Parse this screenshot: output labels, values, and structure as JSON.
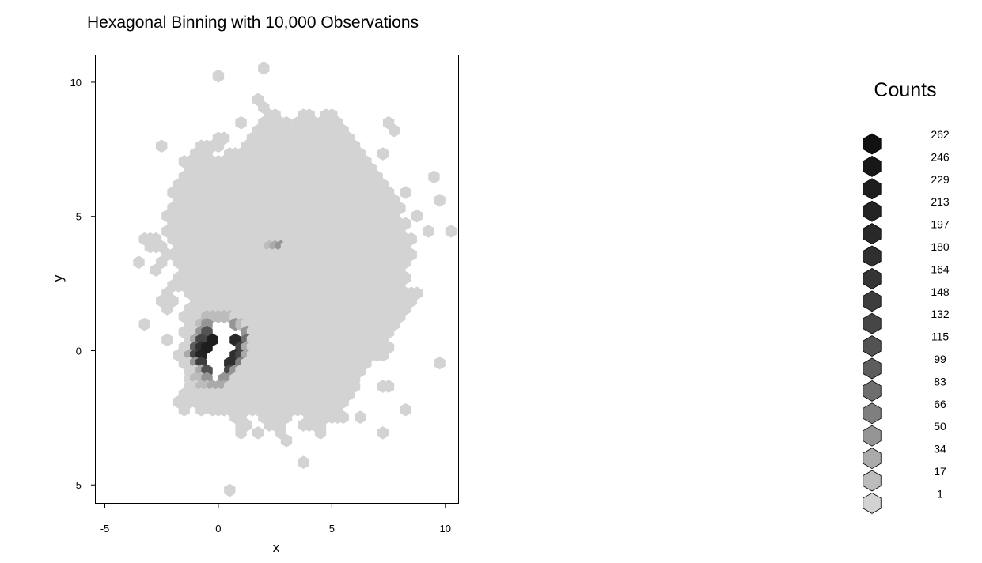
{
  "chart_data": {
    "type": "heatmap",
    "subtype": "hexbin",
    "title": "Hexagonal Binning with 10,000 Observations",
    "xlabel": "x",
    "ylabel": "y",
    "xlim": [
      -5.4,
      10.6
    ],
    "ylim": [
      -5.7,
      11.0
    ],
    "x_ticks": [
      -5,
      0,
      5,
      10
    ],
    "y_ticks": [
      -5,
      0,
      5,
      10
    ],
    "grid": false,
    "legend_title": "Counts",
    "legend_placement": "right",
    "legend_counts": [
      262,
      246,
      229,
      213,
      197,
      180,
      164,
      148,
      132,
      115,
      99,
      83,
      66,
      50,
      34,
      17,
      1
    ],
    "legend_colors": [
      "#111111",
      "#181818",
      "#1e1e1e",
      "#232323",
      "#292929",
      "#2f2f2f",
      "#353535",
      "#3d3d3d",
      "#454545",
      "#525252",
      "#5d5d5d",
      "#6e6e6e",
      "#7f7f7f",
      "#959595",
      "#aaaaaa",
      "#bcbcbc",
      "#d3d3d3"
    ],
    "hex_dx": 0.25,
    "hex_dy": 0.2887,
    "hex_rows": [
      [
        10.52,
        [
          [
            2.0,
            2.0,
            1
          ]
        ]
      ],
      [
        10.23,
        [
          [
            0.0,
            0.0,
            1
          ]
        ]
      ],
      [
        9.35,
        [
          [
            1.75,
            1.75,
            1
          ]
        ]
      ],
      [
        9.06,
        [
          [
            2.0,
            2.0,
            1
          ]
        ]
      ],
      [
        8.77,
        [
          [
            2.25,
            2.5,
            1
          ],
          [
            3.75,
            4.0,
            1
          ],
          [
            4.75,
            5.0,
            1
          ]
        ]
      ],
      [
        8.49,
        [
          [
            1.0,
            1.0,
            1
          ],
          [
            2.0,
            3.0,
            1
          ],
          [
            3.5,
            5.25,
            1
          ],
          [
            7.5,
            7.5,
            1
          ]
        ]
      ],
      [
        8.2,
        [
          [
            1.75,
            5.5,
            1
          ],
          [
            7.75,
            7.75,
            1
          ]
        ]
      ],
      [
        7.91,
        [
          [
            0.0,
            0.25,
            1
          ],
          [
            1.5,
            5.75,
            1
          ]
        ]
      ],
      [
        7.62,
        [
          [
            -2.5,
            -2.5,
            1
          ],
          [
            -0.75,
            0.0,
            1
          ],
          [
            1.25,
            6.0,
            1
          ]
        ]
      ],
      [
        7.33,
        [
          [
            -1.0,
            -0.5,
            1
          ],
          [
            0.5,
            6.25,
            1
          ],
          [
            7.25,
            7.25,
            1
          ]
        ]
      ],
      [
        7.04,
        [
          [
            -1.5,
            -1.5,
            1
          ],
          [
            -1.25,
            6.5,
            1
          ]
        ]
      ],
      [
        6.76,
        [
          [
            -1.25,
            6.75,
            1
          ]
        ]
      ],
      [
        6.47,
        [
          [
            -1.5,
            7.0,
            1
          ],
          [
            9.5,
            9.5,
            1
          ]
        ]
      ],
      [
        6.18,
        [
          [
            -1.75,
            7.25,
            1
          ]
        ]
      ],
      [
        5.89,
        [
          [
            -2.0,
            7.5,
            1
          ],
          [
            8.25,
            8.25,
            1
          ]
        ]
      ],
      [
        5.6,
        [
          [
            -1.75,
            7.75,
            1
          ],
          [
            9.75,
            9.75,
            1
          ]
        ]
      ],
      [
        5.31,
        [
          [
            -2.0,
            8.0,
            1
          ]
        ]
      ],
      [
        5.02,
        [
          [
            -2.25,
            7.75,
            1
          ],
          [
            8.75,
            8.75,
            1
          ]
        ]
      ],
      [
        4.73,
        [
          [
            -2.0,
            8.25,
            1
          ]
        ]
      ],
      [
        4.45,
        [
          [
            -2.25,
            8.0,
            1
          ],
          [
            9.25,
            9.25,
            1
          ],
          [
            10.25,
            10.25,
            1
          ]
        ]
      ],
      [
        4.16,
        [
          [
            -3.25,
            -2.75,
            1
          ],
          [
            -2.0,
            8.5,
            1
          ]
        ]
      ],
      [
        3.87,
        [
          [
            -3.0,
            -2.5,
            1
          ],
          [
            -1.75,
            2.0,
            1
          ],
          [
            2.25,
            2.25,
            2
          ],
          [
            2.5,
            2.5,
            3
          ],
          [
            2.75,
            2.75,
            4
          ],
          [
            3.0,
            8.25,
            1
          ]
        ]
      ],
      [
        3.58,
        [
          [
            -2.25,
            8.5,
            1
          ]
        ]
      ],
      [
        3.29,
        [
          [
            -3.5,
            -3.5,
            1
          ],
          [
            -2.5,
            -2.5,
            1
          ],
          [
            -1.75,
            8.25,
            1
          ]
        ]
      ],
      [
        3.0,
        [
          [
            -2.75,
            -2.75,
            1
          ],
          [
            -1.5,
            8.0,
            1
          ]
        ]
      ],
      [
        2.71,
        [
          [
            -1.75,
            8.25,
            1
          ]
        ]
      ],
      [
        2.42,
        [
          [
            -2.0,
            8.0,
            1
          ]
        ]
      ],
      [
        2.14,
        [
          [
            -2.25,
            -2.25,
            1
          ],
          [
            -1.25,
            8.75,
            1
          ]
        ]
      ],
      [
        1.85,
        [
          [
            -2.5,
            -2.0,
            1
          ],
          [
            -1.0,
            8.5,
            1
          ]
        ]
      ],
      [
        1.56,
        [
          [
            -2.25,
            -2.25,
            1
          ],
          [
            -1.25,
            8.25,
            1
          ]
        ]
      ],
      [
        1.27,
        [
          [
            -1.5,
            -0.75,
            1
          ],
          [
            -0.5,
            0.5,
            2
          ],
          [
            0.75,
            8.0,
            1
          ]
        ]
      ],
      [
        0.98,
        [
          [
            -3.25,
            -3.25,
            1
          ],
          [
            -1.25,
            -1.0,
            1
          ],
          [
            -0.75,
            -0.75,
            2
          ],
          [
            -0.5,
            -0.5,
            4
          ],
          [
            0.75,
            0.75,
            4
          ],
          [
            1.0,
            1.0,
            2
          ],
          [
            1.25,
            7.75,
            1
          ]
        ]
      ],
      [
        0.69,
        [
          [
            -1.5,
            -1.0,
            1
          ],
          [
            -0.75,
            -0.75,
            4
          ],
          [
            -0.5,
            -0.5,
            8
          ],
          [
            1.25,
            1.25,
            4
          ],
          [
            1.5,
            7.5,
            1
          ]
        ]
      ],
      [
        0.4,
        [
          [
            -2.25,
            -2.25,
            1
          ],
          [
            -1.25,
            -1.25,
            1
          ],
          [
            -1.0,
            -1.0,
            3
          ],
          [
            -0.75,
            -0.75,
            9
          ],
          [
            -0.25,
            -0.25,
            15
          ],
          [
            0.75,
            0.75,
            13
          ],
          [
            1.25,
            1.25,
            6
          ],
          [
            1.5,
            7.25,
            1
          ]
        ]
      ],
      [
        0.12,
        [
          [
            -1.5,
            -1.25,
            1
          ],
          [
            -1.0,
            -1.0,
            7
          ],
          [
            -0.75,
            -0.75,
            12
          ],
          [
            -0.5,
            -0.5,
            15
          ],
          [
            1.0,
            1.0,
            9
          ],
          [
            1.25,
            1.25,
            3
          ],
          [
            1.5,
            7.5,
            1
          ]
        ]
      ],
      [
        -0.17,
        [
          [
            -1.75,
            -1.5,
            1
          ],
          [
            -1.25,
            -1.25,
            3
          ],
          [
            -1.0,
            -1.0,
            9
          ],
          [
            -0.75,
            -0.75,
            14
          ],
          [
            0.75,
            0.75,
            12
          ],
          [
            1.0,
            1.0,
            9
          ],
          [
            1.25,
            1.25,
            3
          ],
          [
            1.5,
            7.25,
            1
          ]
        ]
      ],
      [
        -0.46,
        [
          [
            -1.5,
            -1.25,
            1
          ],
          [
            -1.0,
            -1.0,
            4
          ],
          [
            -0.75,
            -0.75,
            10
          ],
          [
            0.5,
            0.5,
            12
          ],
          [
            1.0,
            1.0,
            5
          ],
          [
            1.25,
            6.5,
            1
          ],
          [
            9.75,
            9.75,
            1
          ]
        ]
      ],
      [
        -0.75,
        [
          [
            -1.25,
            -1.0,
            1
          ],
          [
            -0.75,
            -0.75,
            3
          ],
          [
            -0.5,
            -0.5,
            8
          ],
          [
            0.5,
            0.5,
            9
          ],
          [
            0.75,
            0.75,
            4
          ],
          [
            1.0,
            6.25,
            1
          ]
        ]
      ],
      [
        -1.04,
        [
          [
            -1.25,
            -1.25,
            1
          ],
          [
            -1.0,
            -0.75,
            2
          ],
          [
            -0.5,
            -0.5,
            4
          ],
          [
            0.25,
            0.5,
            4
          ],
          [
            0.75,
            6.0,
            1
          ]
        ]
      ],
      [
        -1.33,
        [
          [
            -1.25,
            -1.0,
            1
          ],
          [
            -0.75,
            -0.5,
            2
          ],
          [
            -0.25,
            0.25,
            3
          ],
          [
            0.5,
            6.0,
            1
          ],
          [
            7.25,
            7.5,
            1
          ]
        ]
      ],
      [
        -1.62,
        [
          [
            -1.5,
            5.75,
            1
          ]
        ]
      ],
      [
        -1.91,
        [
          [
            -1.75,
            -1.75,
            1
          ],
          [
            -1.25,
            5.5,
            1
          ]
        ]
      ],
      [
        -2.2,
        [
          [
            -1.5,
            -1.5,
            1
          ],
          [
            -0.75,
            -0.75,
            1
          ],
          [
            -0.25,
            5.25,
            1
          ],
          [
            8.25,
            8.25,
            1
          ]
        ]
      ],
      [
        -2.48,
        [
          [
            0.75,
            1.0,
            1
          ],
          [
            2.0,
            3.0,
            1
          ],
          [
            4.0,
            5.5,
            1
          ],
          [
            6.25,
            6.25,
            1
          ]
        ]
      ],
      [
        -2.77,
        [
          [
            1.0,
            1.25,
            1
          ],
          [
            2.25,
            2.75,
            1
          ],
          [
            3.75,
            4.5,
            1
          ]
        ]
      ],
      [
        -3.06,
        [
          [
            1.0,
            1.0,
            1
          ],
          [
            1.75,
            1.75,
            1
          ],
          [
            2.75,
            2.75,
            1
          ],
          [
            4.5,
            4.5,
            1
          ],
          [
            7.25,
            7.25,
            1
          ]
        ]
      ],
      [
        -3.35,
        [
          [
            3.0,
            3.0,
            1
          ]
        ]
      ],
      [
        -4.16,
        [
          [
            3.75,
            3.75,
            1
          ]
        ]
      ],
      [
        -5.2,
        [
          [
            0.5,
            0.5,
            1
          ]
        ]
      ]
    ]
  }
}
